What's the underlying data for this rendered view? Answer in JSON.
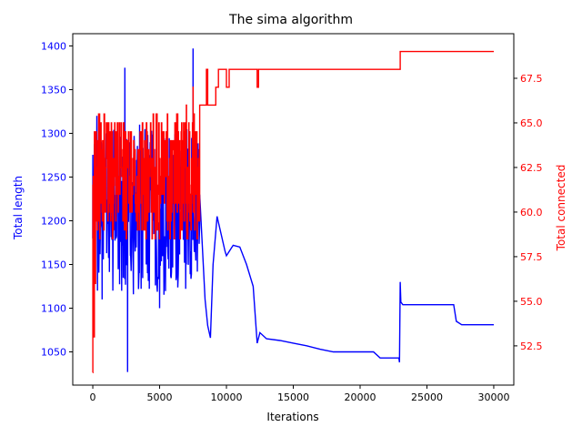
{
  "chart_data": {
    "type": "line",
    "title": "The sima algorithm",
    "xlabel": "Iterations",
    "xlim": [
      -1500,
      31500
    ],
    "xticks": [
      0,
      5000,
      10000,
      15000,
      20000,
      25000,
      30000
    ],
    "grid": false,
    "legend": "none",
    "series": [
      {
        "axis": "left",
        "ylabel": "Total length",
        "color": "#0000ff",
        "ylim": [
          1012,
          1414
        ],
        "yticks": [
          1050,
          1100,
          1150,
          1200,
          1250,
          1300,
          1350,
          1400
        ],
        "noise": {
          "x_start": 0,
          "x_end": 8000,
          "center": 1210,
          "amplitude": 95
        },
        "points": [
          [
            0,
            1180
          ],
          [
            300,
            1320
          ],
          [
            700,
            1110
          ],
          [
            1000,
            1300
          ],
          [
            1500,
            1120
          ],
          [
            2000,
            1250
          ],
          [
            2400,
            1375
          ],
          [
            2600,
            1027
          ],
          [
            3000,
            1180
          ],
          [
            3500,
            1310
          ],
          [
            4000,
            1150
          ],
          [
            4500,
            1200
          ],
          [
            5000,
            1100
          ],
          [
            5500,
            1170
          ],
          [
            6000,
            1250
          ],
          [
            6500,
            1280
          ],
          [
            7000,
            1150
          ],
          [
            7500,
            1397
          ],
          [
            8000,
            1230
          ],
          [
            8400,
            1110
          ],
          [
            8600,
            1080
          ],
          [
            8800,
            1066
          ],
          [
            9000,
            1150
          ],
          [
            9300,
            1205
          ],
          [
            9600,
            1185
          ],
          [
            9900,
            1165
          ],
          [
            10000,
            1160
          ],
          [
            10500,
            1172
          ],
          [
            11000,
            1170
          ],
          [
            11500,
            1150
          ],
          [
            12000,
            1125
          ],
          [
            12300,
            1060
          ],
          [
            12500,
            1072
          ],
          [
            13000,
            1065
          ],
          [
            14000,
            1063
          ],
          [
            15000,
            1060
          ],
          [
            16000,
            1057
          ],
          [
            17000,
            1053
          ],
          [
            18000,
            1050
          ],
          [
            19000,
            1050
          ],
          [
            20000,
            1050
          ],
          [
            21000,
            1050
          ],
          [
            21500,
            1043
          ],
          [
            22000,
            1043
          ],
          [
            22900,
            1043
          ],
          [
            22950,
            1038
          ],
          [
            23000,
            1130
          ],
          [
            23050,
            1107
          ],
          [
            23200,
            1104
          ],
          [
            25000,
            1104
          ],
          [
            27000,
            1104
          ],
          [
            27200,
            1085
          ],
          [
            27600,
            1081
          ],
          [
            30000,
            1081
          ]
        ]
      },
      {
        "axis": "right",
        "ylabel": "Total connected",
        "color": "#ff0000",
        "ylim": [
          50.3,
          70.0
        ],
        "yticks": [
          52.5,
          55.0,
          57.5,
          60.0,
          62.5,
          65.0,
          67.5
        ],
        "yticklabels": [
          "52.5",
          "55.0",
          "57.5",
          "60.0",
          "62.5",
          "65.0",
          "67.5"
        ],
        "noise": {
          "x_start": 0,
          "x_end": 8000,
          "center": 62,
          "amplitude": 3.5
        },
        "points": [
          [
            0,
            51
          ],
          [
            100,
            53
          ],
          [
            200,
            56
          ],
          [
            400,
            60
          ],
          [
            700,
            63
          ],
          [
            1200,
            60
          ],
          [
            2000,
            61
          ],
          [
            3000,
            63
          ],
          [
            4000,
            64
          ],
          [
            5000,
            63
          ],
          [
            6000,
            64
          ],
          [
            7000,
            66
          ],
          [
            7500,
            67
          ],
          [
            8000,
            66
          ],
          [
            8300,
            66
          ],
          [
            8500,
            68
          ],
          [
            8600,
            66
          ],
          [
            9000,
            66
          ],
          [
            9200,
            67
          ],
          [
            9400,
            68
          ],
          [
            9600,
            68
          ],
          [
            9800,
            68
          ],
          [
            10000,
            67
          ],
          [
            10200,
            68
          ],
          [
            12200,
            68
          ],
          [
            12300,
            67
          ],
          [
            12400,
            68
          ],
          [
            22900,
            68
          ],
          [
            23000,
            69
          ],
          [
            30000,
            69
          ]
        ]
      }
    ]
  }
}
